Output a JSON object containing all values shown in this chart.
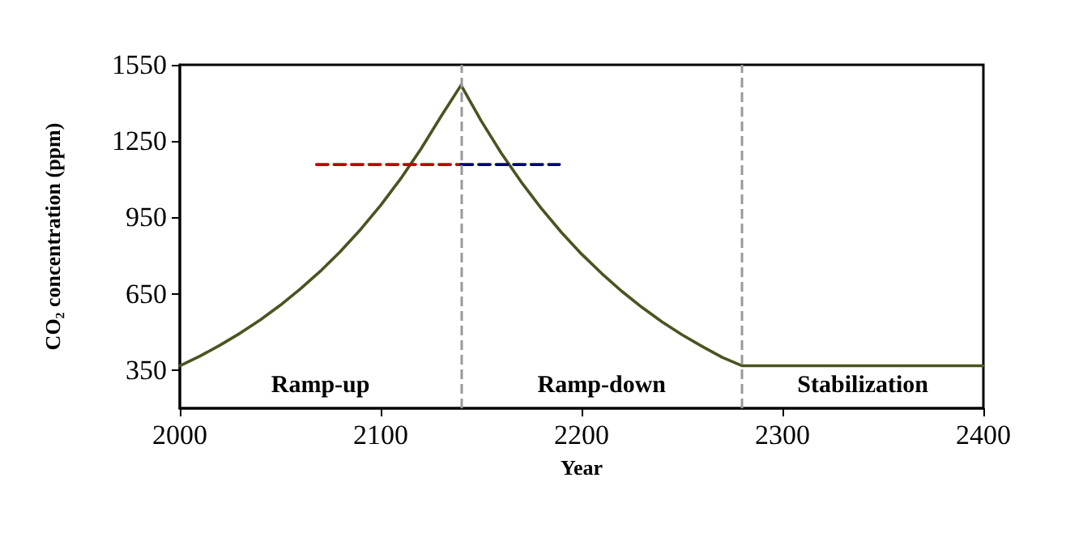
{
  "chart_data": {
    "type": "line",
    "xlabel": "Year",
    "ylabel": "CO₂ concentration (ppm)",
    "xlim": [
      2000,
      2400
    ],
    "xticks": [
      2000,
      2100,
      2200,
      2300,
      2400
    ],
    "ylim": [
      200,
      1550
    ],
    "yticks": [
      350,
      650,
      950,
      1250,
      1550
    ],
    "grid": false,
    "marker": "none",
    "series": [
      {
        "color": "#4b5320",
        "line_style": "solid",
        "x": [
          2000,
          2010,
          2020,
          2030,
          2040,
          2050,
          2060,
          2070,
          2080,
          2090,
          2100,
          2110,
          2120,
          2130,
          2140,
          2150,
          2160,
          2170,
          2180,
          2190,
          2200,
          2210,
          2220,
          2230,
          2240,
          2250,
          2260,
          2270,
          2280,
          2400
        ],
        "values": [
          367,
          405,
          448,
          495,
          547,
          605,
          669,
          739,
          817,
          903,
          998,
          1103,
          1219,
          1347,
          1470,
          1330,
          1203,
          1089,
          985,
          891,
          806,
          730,
          660,
          597,
          540,
          489,
          443,
          400,
          367,
          367
        ]
      },
      {
        "color": "#c00000",
        "line_style": "dashed",
        "x": [
          2068,
          2140
        ],
        "values": [
          1158,
          1158
        ]
      },
      {
        "color": "#000080",
        "line_style": "dashed",
        "x": [
          2140,
          2189
        ],
        "values": [
          1158,
          1158
        ]
      }
    ],
    "ref_lines": [
      {
        "axis": "x",
        "value": 2140,
        "color": "#999999",
        "line_style": "dashed"
      },
      {
        "axis": "x",
        "value": 2280,
        "color": "#999999",
        "line_style": "dashed"
      }
    ],
    "annotations": [
      "Ramp-up",
      "Ramp-down",
      "Stabilization"
    ]
  }
}
